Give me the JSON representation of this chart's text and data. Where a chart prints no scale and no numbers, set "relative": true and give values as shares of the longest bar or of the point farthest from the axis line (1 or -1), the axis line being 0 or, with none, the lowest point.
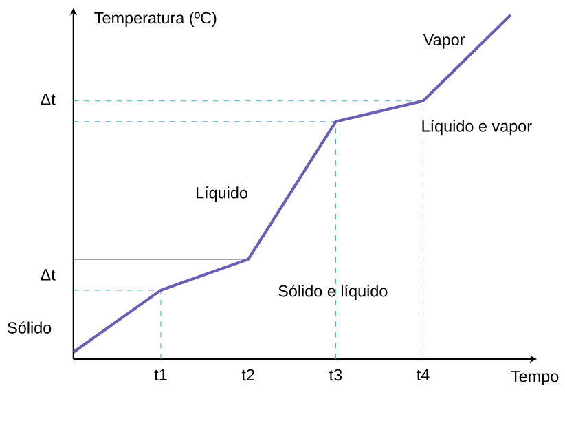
{
  "chart_data": {
    "type": "line",
    "relative": true,
    "ylabel": "Temperatura (ºC)",
    "xlabel": "Tempo",
    "categories": [
      null,
      "t1",
      "t2",
      "t3",
      "t4",
      null
    ],
    "series": [
      {
        "color": "#6b5fb5",
        "values": [
          0.02,
          0.2,
          0.29,
          0.69,
          0.75,
          1
        ]
      }
    ],
    "ref_lines": [
      {
        "axis": "y",
        "value": 0.2,
        "color": "#3fb0d0",
        "line_style": "dashed"
      },
      {
        "axis": "y",
        "value": 0.29,
        "color": "#555555",
        "line_style": "solid"
      },
      {
        "axis": "y",
        "value": 0.69,
        "color": "#3fb0d0",
        "line_style": "dashed"
      },
      {
        "axis": "y",
        "value": 0.75,
        "color": "#3fb0d0",
        "line_style": "dashed"
      },
      {
        "axis": "x",
        "value": "t1",
        "color": "#3fb0d0",
        "line_style": "dashed"
      },
      {
        "axis": "x",
        "value": "t3",
        "color": "#3fb0d0",
        "line_style": "dashed"
      },
      {
        "axis": "x",
        "value": "t4",
        "color": "#3fb0d0",
        "line_style": "dashed"
      }
    ],
    "annotations": [
      "Vapor",
      "Líquido e vapor",
      "Líquido",
      "Sólido e líquido",
      "Sólido",
      "Δt",
      "Δt"
    ],
    "grid": false,
    "marker": "none",
    "line_style": "solid"
  }
}
